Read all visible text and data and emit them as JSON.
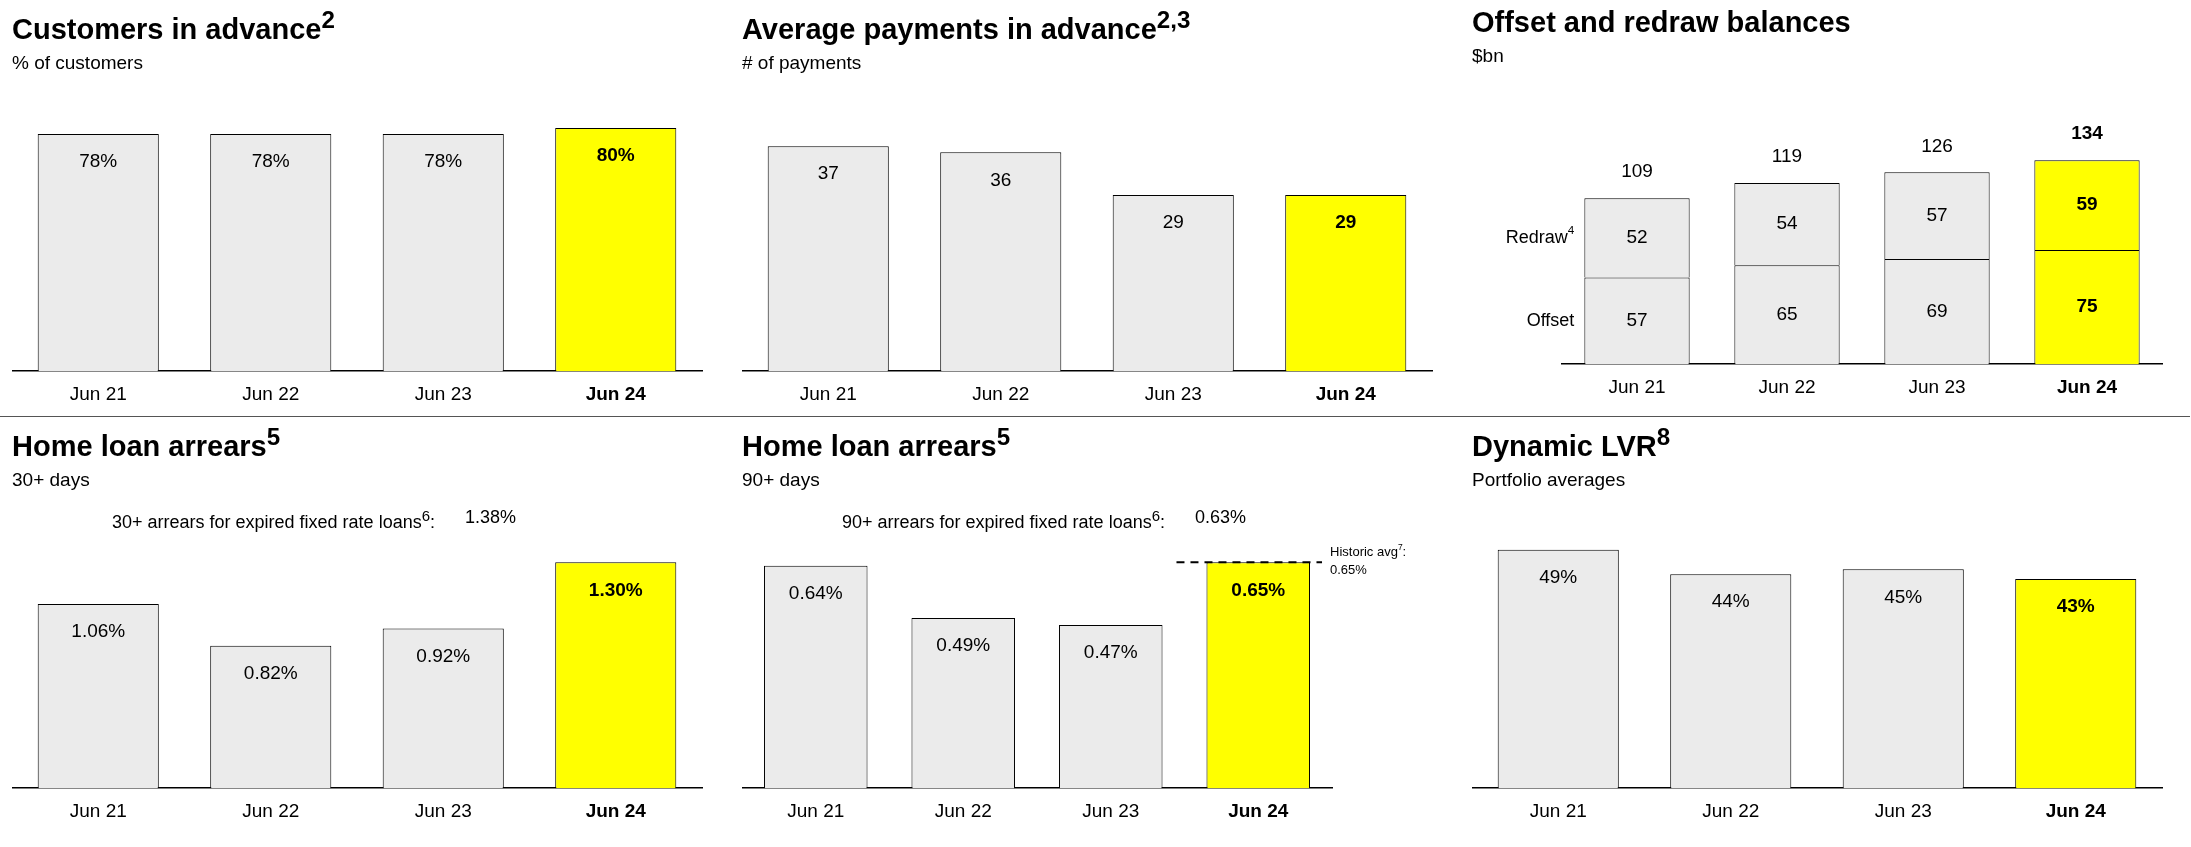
{
  "chart_data": [
    {
      "type": "bar",
      "title": "Customers in advance$^{2}$",
      "subtitle": "% of customers",
      "categories": [
        "Jun 21",
        "Jun 22",
        "Jun 23",
        "Jun 24"
      ],
      "values": [
        78,
        78,
        78,
        80
      ],
      "colors": [
        "#ebebeb",
        "#ebebeb",
        "#ebebeb",
        "#ffff00"
      ],
      "value_labels": [
        "78%",
        "78%",
        "78%",
        "80%"
      ]
    },
    {
      "type": "bar",
      "title": "Average payments in advance$^{2,3}$",
      "subtitle": "# of payments",
      "categories": [
        "Jun 21",
        "Jun 22",
        "Jun 23",
        "Jun 24"
      ],
      "values": [
        37,
        36,
        29,
        29
      ],
      "colors": [
        "#ebebeb",
        "#ebebeb",
        "#ebebeb",
        "#ffff00"
      ],
      "data_labels": true
    },
    {
      "type": "bar",
      "title": "Offset and redraw balances",
      "subtitle": "$bn",
      "categories": [
        "Jun 21",
        "Jun 22",
        "Jun 23",
        "Jun 24"
      ],
      "stacked": true,
      "data_labels": true,
      "totals": [
        "109",
        "119",
        "126",
        "134"
      ],
      "series": [
        {
          "name": "Offset",
          "colors": [
            "#ebebeb",
            "#ebebeb",
            "#ebebeb",
            "#ffff00"
          ],
          "values": [
            57,
            65,
            69,
            75
          ]
        },
        {
          "name": "Redraw$^{4}$",
          "colors": [
            "#ebebeb",
            "#ebebeb",
            "#ebebeb",
            "#ffff00"
          ],
          "values": [
            52,
            54,
            57,
            59
          ]
        }
      ]
    },
    {
      "type": "bar",
      "title": "Home loan arrears$^{5}$",
      "subtitle": "30+ days",
      "annotations": [
        "30+ arrears for expired fixed rate loans$^{6}$:",
        "1.38%"
      ],
      "categories": [
        "Jun 21",
        "Jun 22",
        "Jun 23",
        "Jun 24"
      ],
      "values": [
        1.06,
        0.82,
        0.92,
        1.3
      ],
      "colors": [
        "#ebebeb",
        "#ebebeb",
        "#ebebeb",
        "#ffff00"
      ],
      "value_labels": [
        "1.06%",
        "0.82%",
        "0.92%",
        "1.30%"
      ]
    },
    {
      "type": "bar",
      "title": "Home loan arrears$^{5}$",
      "subtitle": "90+ days",
      "annotations": [
        "90+ arrears for expired fixed rate loans$^{6}$:",
        "0.63%"
      ],
      "categories": [
        "Jun 21",
        "Jun 22",
        "Jun 23",
        "Jun 24"
      ],
      "values": [
        0.64,
        0.49,
        0.47,
        0.65
      ],
      "colors": [
        "#ebebeb",
        "#ebebeb",
        "#ebebeb",
        "#ffff00"
      ],
      "value_labels": [
        "0.64%",
        "0.49%",
        "0.47%",
        "0.65%"
      ],
      "ref_lines": [
        {
          "axis": "y",
          "value": 0.65,
          "label": "Historic avg$^{7}$:\n0.65%",
          "color": "#000000",
          "line_style": "dashed"
        }
      ]
    },
    {
      "type": "bar",
      "title": "Dynamic LVR$^{8}$",
      "subtitle": "Portfolio averages",
      "categories": [
        "Jun 21",
        "Jun 22",
        "Jun 23",
        "Jun 24"
      ],
      "values": [
        49,
        44,
        45,
        43
      ],
      "colors": [
        "#ebebeb",
        "#ebebeb",
        "#ebebeb",
        "#ffff00"
      ],
      "value_labels": [
        "49%",
        "44%",
        "45%",
        "43%"
      ]
    }
  ]
}
